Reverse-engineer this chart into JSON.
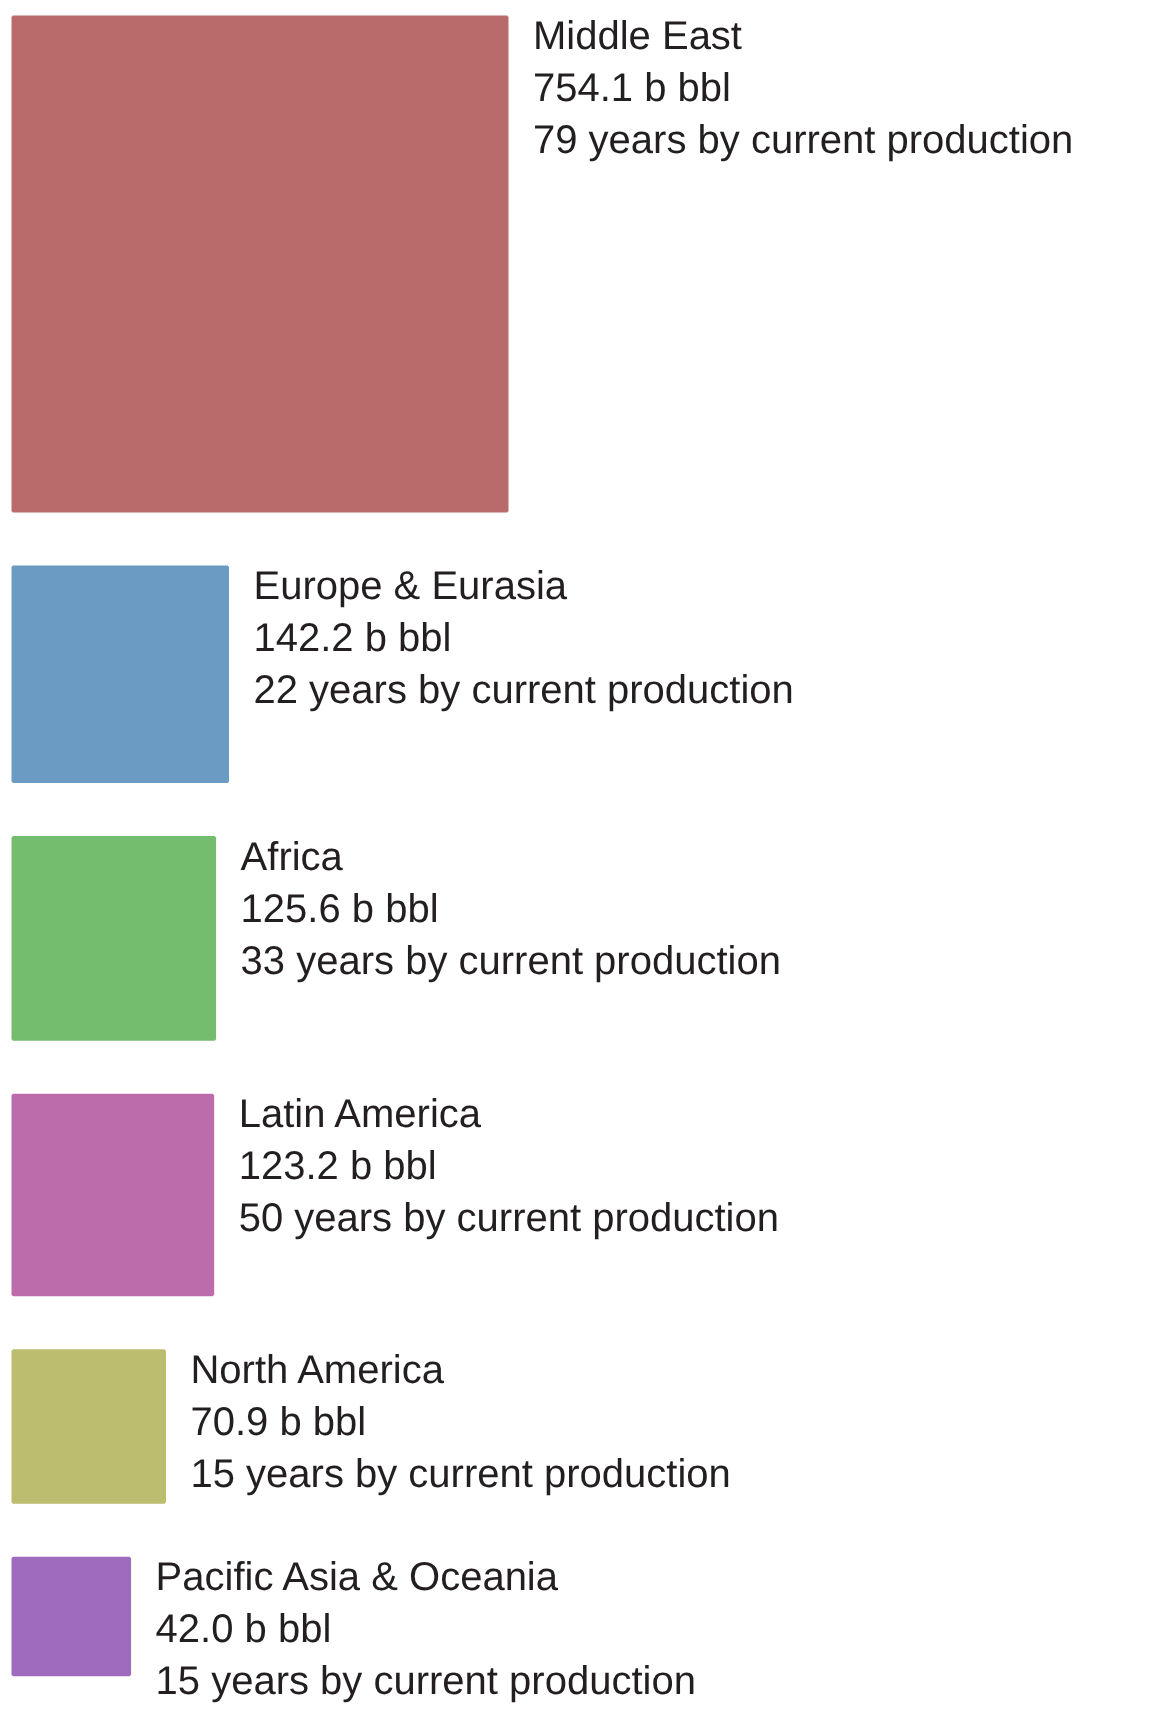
{
  "chart_data": {
    "type": "other",
    "categories": [
      "Middle East",
      "Europe & Eurasia",
      "Africa",
      "Latin America",
      "North America",
      "Pacific Asia & Oceania"
    ],
    "values": [
      754.1,
      142.2,
      125.6,
      123.2,
      70.9,
      42.0
    ],
    "value_labels": [
      "754.1 b bbl",
      "142.2 b bbl",
      "125.6 b bbl",
      "123.2 b bbl",
      "70.9 b bbl",
      "42.0 b bbl"
    ],
    "colors": [
      "#b96b6b",
      "#6b9bc3",
      "#74bd6f",
      "#bc6caa",
      "#bcbd6e",
      "#9f6bbf"
    ],
    "annotations": [
      "79 years by current production",
      "22 years by current production",
      "33 years by current production",
      "50 years by current production",
      "15 years by current production",
      "15 years by current production"
    ]
  }
}
